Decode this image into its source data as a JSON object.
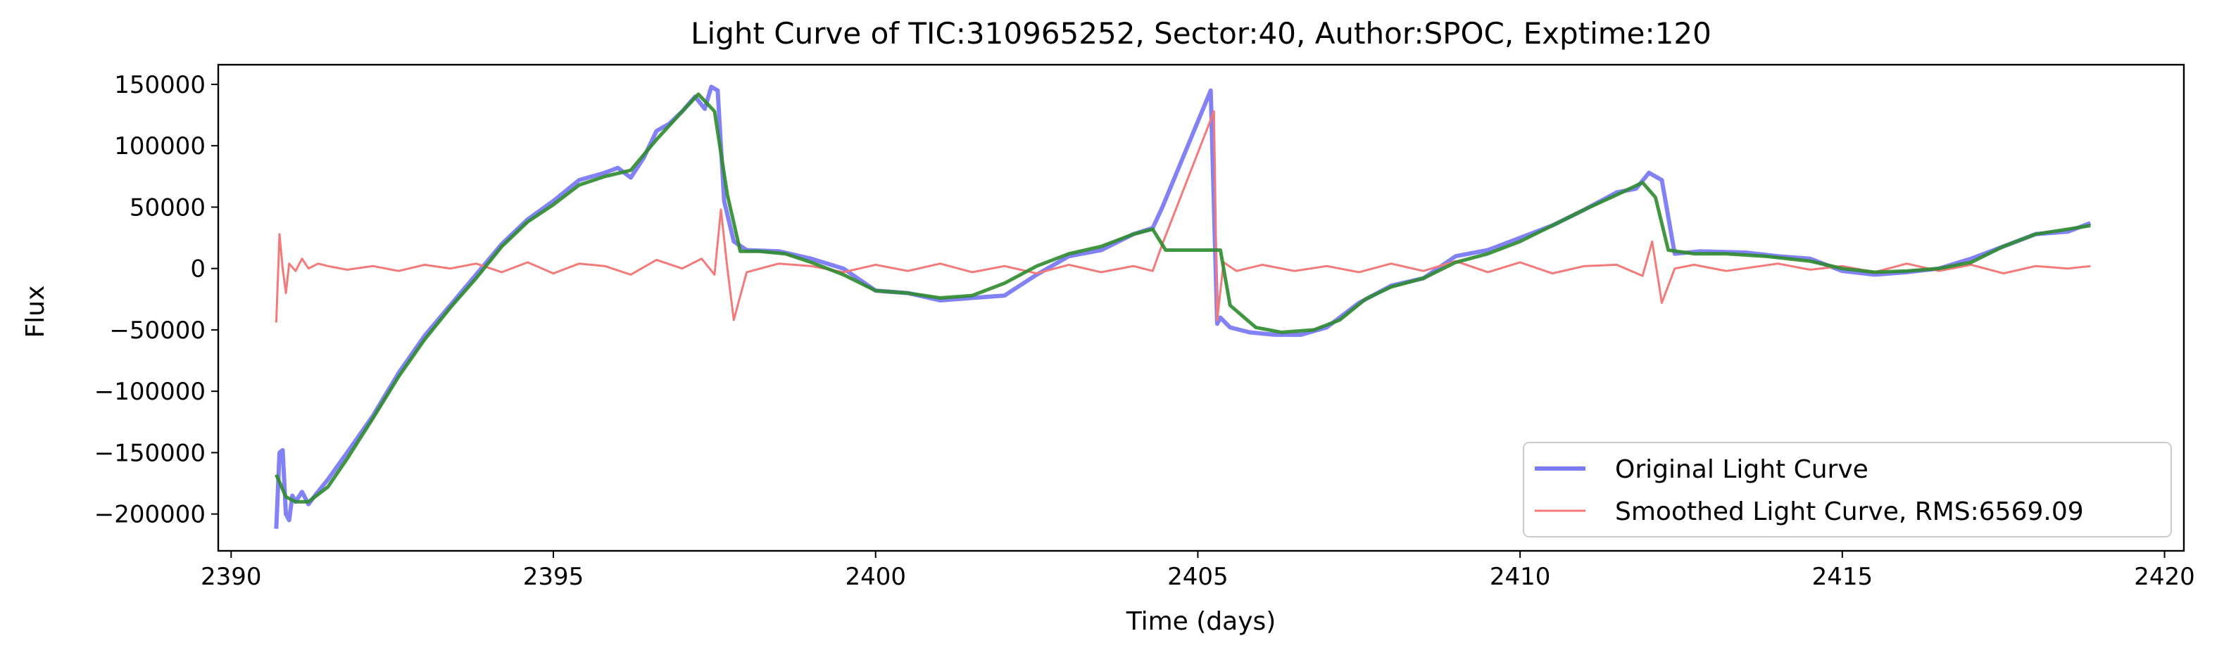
{
  "chart_data": {
    "type": "line",
    "title": "Light Curve of TIC:310965252, Sector:40, Author:SPOC, Exptime:120",
    "xlabel": "Time (days)",
    "ylabel": "Flux",
    "xlim": [
      2389.8,
      2420.3
    ],
    "ylim": [
      -230000,
      166000
    ],
    "xticks": [
      2390,
      2395,
      2400,
      2405,
      2410,
      2415,
      2420
    ],
    "yticks": [
      -200000,
      -150000,
      -100000,
      -50000,
      0,
      50000,
      100000,
      150000
    ],
    "xtick_labels": [
      "2390",
      "2395",
      "2400",
      "2405",
      "2410",
      "2415",
      "2420"
    ],
    "ytick_labels": [
      "−200000",
      "−150000",
      "−100000",
      "−50000",
      "0",
      "50000",
      "100000",
      "150000"
    ],
    "grid": false,
    "legend_position": "lower-right",
    "series": [
      {
        "name": "Original Light Curve",
        "color": "#7b7bf5",
        "x": [
          2390.7,
          2390.75,
          2390.8,
          2390.85,
          2390.9,
          2390.95,
          2391.0,
          2391.1,
          2391.2,
          2391.3,
          2391.5,
          2391.8,
          2392.2,
          2392.6,
          2393.0,
          2393.4,
          2393.8,
          2394.2,
          2394.6,
          2395.0,
          2395.4,
          2395.8,
          2396.0,
          2396.2,
          2396.4,
          2396.6,
          2396.8,
          2397.0,
          2397.2,
          2397.35,
          2397.45,
          2397.55,
          2397.65,
          2397.8,
          2398.0,
          2398.5,
          2399.0,
          2399.5,
          2400.0,
          2400.5,
          2401.0,
          2401.5,
          2402.0,
          2402.5,
          2403.0,
          2403.5,
          2404.0,
          2404.3,
          2404.45,
          2405.2,
          2405.3,
          2405.35,
          2405.5,
          2405.8,
          2406.2,
          2406.6,
          2407.0,
          2407.5,
          2408.0,
          2408.5,
          2409.0,
          2409.5,
          2410.0,
          2410.5,
          2411.0,
          2411.5,
          2411.8,
          2412.0,
          2412.2,
          2412.4,
          2412.8,
          2413.5,
          2414.0,
          2414.5,
          2415.0,
          2415.5,
          2416.0,
          2416.5,
          2417.0,
          2417.5,
          2418.0,
          2418.5,
          2418.85
        ],
        "values": [
          -212000,
          -150000,
          -148000,
          -200000,
          -205000,
          -185000,
          -190000,
          -182000,
          -192000,
          -185000,
          -172000,
          -150000,
          -120000,
          -85000,
          -55000,
          -30000,
          -5000,
          20000,
          40000,
          55000,
          72000,
          78000,
          82000,
          74000,
          90000,
          112000,
          118000,
          128000,
          140000,
          130000,
          148000,
          145000,
          55000,
          22000,
          15000,
          14000,
          8000,
          0,
          -18000,
          -20000,
          -26000,
          -24000,
          -22000,
          -5000,
          10000,
          15000,
          28000,
          33000,
          50000,
          145000,
          -45000,
          -40000,
          -48000,
          -52000,
          -54000,
          -54000,
          -48000,
          -28000,
          -14000,
          -8000,
          10000,
          15000,
          25000,
          35000,
          48000,
          62000,
          65000,
          78000,
          72000,
          12000,
          14000,
          13000,
          10000,
          8000,
          -2000,
          -5000,
          -3000,
          0,
          8000,
          18000,
          28000,
          30000,
          37000
        ]
      },
      {
        "name": "Smoothed Light Curve, RMS:6569.09",
        "color": "#f47a7a",
        "x": [
          2390.7,
          2390.75,
          2390.8,
          2390.85,
          2390.9,
          2391.0,
          2391.1,
          2391.2,
          2391.35,
          2391.5,
          2391.8,
          2392.2,
          2392.6,
          2393.0,
          2393.4,
          2393.8,
          2394.2,
          2394.6,
          2395.0,
          2395.4,
          2395.8,
          2396.2,
          2396.6,
          2397.0,
          2397.3,
          2397.5,
          2397.6,
          2397.7,
          2397.8,
          2398.0,
          2398.5,
          2399.0,
          2399.5,
          2400.0,
          2400.5,
          2401.0,
          2401.5,
          2402.0,
          2402.5,
          2403.0,
          2403.5,
          2404.0,
          2404.3,
          2404.45,
          2405.25,
          2405.3,
          2405.4,
          2405.6,
          2406.0,
          2406.5,
          2407.0,
          2407.5,
          2408.0,
          2408.5,
          2409.0,
          2409.5,
          2410.0,
          2410.5,
          2411.0,
          2411.5,
          2411.9,
          2412.05,
          2412.2,
          2412.4,
          2412.7,
          2413.2,
          2414.0,
          2414.5,
          2415.0,
          2415.5,
          2416.0,
          2416.5,
          2417.0,
          2417.5,
          2418.0,
          2418.5,
          2418.85
        ],
        "values": [
          -44000,
          28000,
          0,
          -20000,
          4000,
          -2000,
          8000,
          0,
          4000,
          2000,
          -1000,
          2000,
          -2000,
          3000,
          0,
          4000,
          -3000,
          5000,
          -4000,
          4000,
          2000,
          -5000,
          7000,
          0,
          8000,
          -5000,
          48000,
          0,
          -42000,
          -3000,
          4000,
          2000,
          -3000,
          3000,
          -2000,
          4000,
          -3000,
          2000,
          -4000,
          3000,
          -3000,
          2000,
          -2000,
          20000,
          128000,
          -42000,
          5000,
          -2000,
          3000,
          -2000,
          2000,
          -3000,
          4000,
          -2000,
          6000,
          -3000,
          5000,
          -4000,
          2000,
          3000,
          -6000,
          22000,
          -28000,
          0,
          3000,
          -2000,
          4000,
          -1000,
          2000,
          -3000,
          4000,
          -2000,
          3000,
          -4000,
          2000,
          0,
          2000
        ]
      },
      {
        "name": "",
        "color": "#2e8b2e",
        "x": [
          2390.7,
          2390.85,
          2391.0,
          2391.2,
          2391.5,
          2391.8,
          2392.2,
          2392.6,
          2393.0,
          2393.4,
          2393.8,
          2394.2,
          2394.6,
          2395.0,
          2395.4,
          2395.8,
          2396.2,
          2396.6,
          2397.0,
          2397.25,
          2397.5,
          2397.7,
          2397.9,
          2398.2,
          2398.6,
          2399.0,
          2399.5,
          2400.0,
          2400.5,
          2401.0,
          2401.5,
          2402.0,
          2402.5,
          2403.0,
          2403.5,
          2404.0,
          2404.3,
          2404.5,
          2405.35,
          2405.5,
          2405.9,
          2406.3,
          2406.8,
          2407.2,
          2407.6,
          2408.0,
          2408.5,
          2409.0,
          2409.5,
          2410.0,
          2410.5,
          2411.0,
          2411.5,
          2411.9,
          2412.1,
          2412.3,
          2412.7,
          2413.2,
          2413.8,
          2414.5,
          2415.0,
          2415.5,
          2416.0,
          2416.5,
          2417.0,
          2417.5,
          2418.0,
          2418.5,
          2418.85
        ],
        "values": [
          -168000,
          -186000,
          -190000,
          -190000,
          -178000,
          -155000,
          -122000,
          -88000,
          -58000,
          -32000,
          -8000,
          18000,
          38000,
          52000,
          68000,
          75000,
          80000,
          105000,
          128000,
          142000,
          128000,
          60000,
          14000,
          14000,
          12000,
          5000,
          -5000,
          -18000,
          -20000,
          -24000,
          -22000,
          -12000,
          2000,
          12000,
          18000,
          28000,
          32000,
          15000,
          15000,
          -30000,
          -48000,
          -52000,
          -50000,
          -42000,
          -25000,
          -15000,
          -8000,
          5000,
          12000,
          22000,
          35000,
          48000,
          60000,
          70000,
          58000,
          15000,
          12000,
          12000,
          10000,
          6000,
          0,
          -3000,
          -2000,
          0,
          5000,
          18000,
          28000,
          32000,
          35000
        ]
      }
    ]
  }
}
